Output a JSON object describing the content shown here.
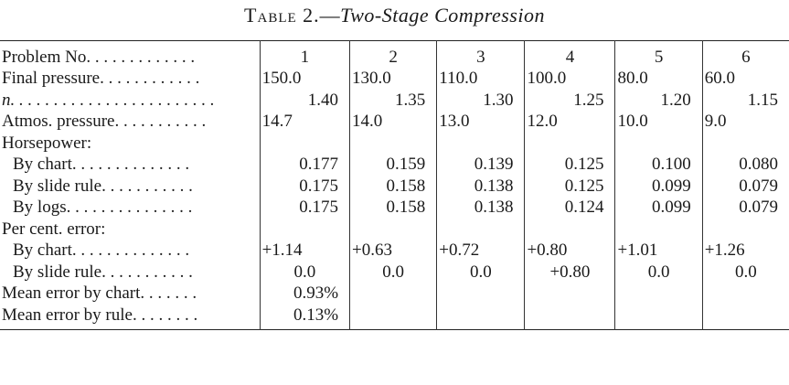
{
  "title": {
    "prefix": "Table 2.",
    "dash": "—",
    "name": "Two-Stage Compression"
  },
  "header": {
    "label": "Problem No. . . . . . . . . . . . .",
    "values": [
      "1",
      "2",
      "3",
      "4",
      "5",
      "6"
    ]
  },
  "final_pressure": {
    "label": "Final pressure. . . . . . . . . . . .",
    "values": [
      "150.0",
      "130.0",
      "110.0",
      "100.0",
      "80.0",
      "60.0"
    ]
  },
  "n_row": {
    "label": "n. . . . . . . . . . . . . . . . . . . . . . . .",
    "values": [
      "1.40",
      "1.35",
      "1.30",
      "1.25",
      "1.20",
      "1.15"
    ]
  },
  "atmos_pressure": {
    "label": "Atmos. pressure. . . . . . . . . . .",
    "values": [
      "14.7",
      "14.0",
      "13.0",
      "12.0",
      "10.0",
      "9.0"
    ]
  },
  "horsepower": {
    "label": "Horsepower:",
    "by_chart": {
      "label": "By chart. . . . . . . . . . . . . .",
      "values": [
        "0.177",
        "0.159",
        "0.139",
        "0.125",
        "0.100",
        "0.080"
      ]
    },
    "by_slide_rule": {
      "label": "By slide rule. . . . . . . . . . .",
      "values": [
        "0.175",
        "0.158",
        "0.138",
        "0.125",
        "0.099",
        "0.079"
      ]
    },
    "by_logs": {
      "label": "By logs. . . . . . . . . . . . . . .",
      "values": [
        "0.175",
        "0.158",
        "0.138",
        "0.124",
        "0.099",
        "0.079"
      ]
    }
  },
  "per_cent_error": {
    "label": "Per cent. error:",
    "by_chart": {
      "label": "By chart. . . . . . . . . . . . . .",
      "values": [
        "+1.14",
        "+0.63",
        "+0.72",
        "+0.80",
        "+1.01",
        "+1.26"
      ]
    },
    "by_slide_rule": {
      "label": "By slide rule. . . . . . . . . . .",
      "values": [
        "0.0",
        "0.0",
        "0.0",
        "+0.80",
        "0.0",
        "0.0"
      ]
    }
  },
  "mean_error_chart": {
    "label": "Mean error by chart. . . . . . .",
    "value": "0.93%"
  },
  "mean_error_rule": {
    "label": "Mean error by rule. . . . . . . .",
    "value": "0.13%"
  }
}
